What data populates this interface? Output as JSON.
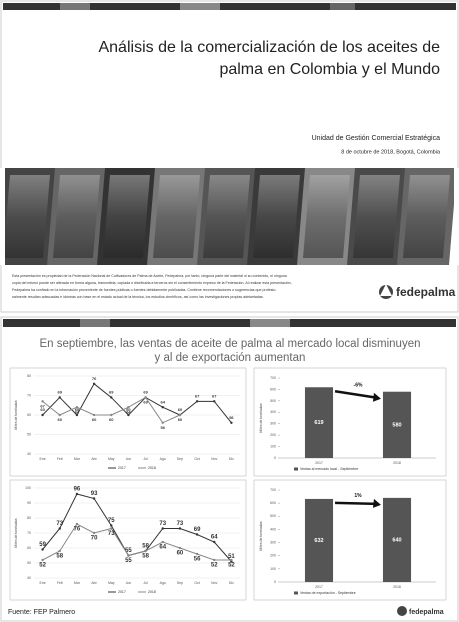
{
  "slides": [
    {
      "title_lines": [
        "Análisis de la comercialización de los aceites de",
        "palma en Colombia y el Mundo"
      ],
      "unit": "Unidad de Gestión Comercial Estratégica",
      "date": "8 de octubre de 2018, Bogotá, Colombia",
      "disclaimer": [
        "Esta presentación es propiedad de la Federación Nacional de Cultivadores de Palma de Aceite, Fedepalma, por tanto, ninguna parte del material ni su contenido, ni ninguna",
        "copia del mismo puede ser alterada en forma alguna, transmitida, copiada o distribuida a terceros sin el consentimiento expreso de la Federación. Al realizar esta presentación,",
        "Fedepalma ha confiado en la información proveniente de fuentes públicas o fuentes debidamente publicadas. Contiene recomendaciones o sugerencias que profesio-",
        "nalmente resultan adecuadas e idóneas con base en el estado actual de la técnica, los estudios científicos, así como las investigaciones propias adelantadas."
      ],
      "logo": "fedepalma"
    },
    {
      "title_lines": [
        "En septiembre, las ventas de aceite de palma al mercado local disminuyen",
        "y al de exportación aumentan"
      ],
      "source": "Fuente: FEP Palmero",
      "logo": "fedepalma"
    }
  ],
  "chart_data": [
    {
      "type": "line",
      "y_label": "Miles de toneladas",
      "categories": [
        "Ene",
        "Feb",
        "Mar",
        "Abr",
        "May",
        "Jun",
        "Jul",
        "Ago",
        "Sep",
        "Oct",
        "Nov",
        "Dic"
      ],
      "series": [
        {
          "name": "2017",
          "color": "#333333",
          "values": [
            60,
            69,
            60,
            76,
            69,
            60,
            69,
            64,
            60,
            67,
            67,
            56
          ]
        },
        {
          "name": "2018",
          "color": "#888888",
          "values": [
            67,
            60,
            64,
            60,
            60,
            64,
            69,
            56,
            60,
            null,
            null,
            null
          ]
        }
      ],
      "ylim": [
        40,
        80
      ],
      "yticks": [
        40,
        50,
        60,
        70,
        80
      ]
    },
    {
      "type": "line",
      "y_label": "Miles de toneladas",
      "categories": [
        "Ene",
        "Feb",
        "Mar",
        "Abr",
        "May",
        "Jun",
        "Jul",
        "Ago",
        "Sep",
        "Oct",
        "Nov",
        "Dic"
      ],
      "series": [
        {
          "name": "2017",
          "color": "#333333",
          "values": [
            59,
            73,
            96,
            93,
            75,
            55,
            58,
            73,
            73,
            69,
            64,
            51
          ]
        },
        {
          "name": "2018",
          "color": "#888888",
          "values": [
            52,
            58,
            76,
            70,
            73,
            55,
            58,
            64,
            60,
            56,
            52,
            52
          ]
        }
      ],
      "ylim": [
        40,
        100
      ],
      "yticks": [
        40,
        50,
        60,
        70,
        80,
        90,
        100
      ]
    },
    {
      "type": "bar",
      "y_label": "Miles de toneladas",
      "annotation": "-6%",
      "categories": [
        "2017",
        "2018"
      ],
      "series": [
        {
          "name": "Ventas al mercado local - Septiembre",
          "color": "#555555",
          "values": [
            619,
            580
          ]
        }
      ],
      "ylim": [
        0,
        700
      ],
      "yticks": [
        0,
        100,
        200,
        300,
        400,
        500,
        600,
        700
      ]
    },
    {
      "type": "bar",
      "y_label": "Miles de toneladas",
      "annotation": "1%",
      "categories": [
        "2017",
        "2018"
      ],
      "series": [
        {
          "name": "Ventas de exportación - Septiembre",
          "color": "#555555",
          "values": [
            632,
            640
          ]
        }
      ],
      "ylim": [
        0,
        700
      ],
      "yticks": [
        0,
        100,
        200,
        300,
        400,
        500,
        600,
        700
      ]
    }
  ]
}
